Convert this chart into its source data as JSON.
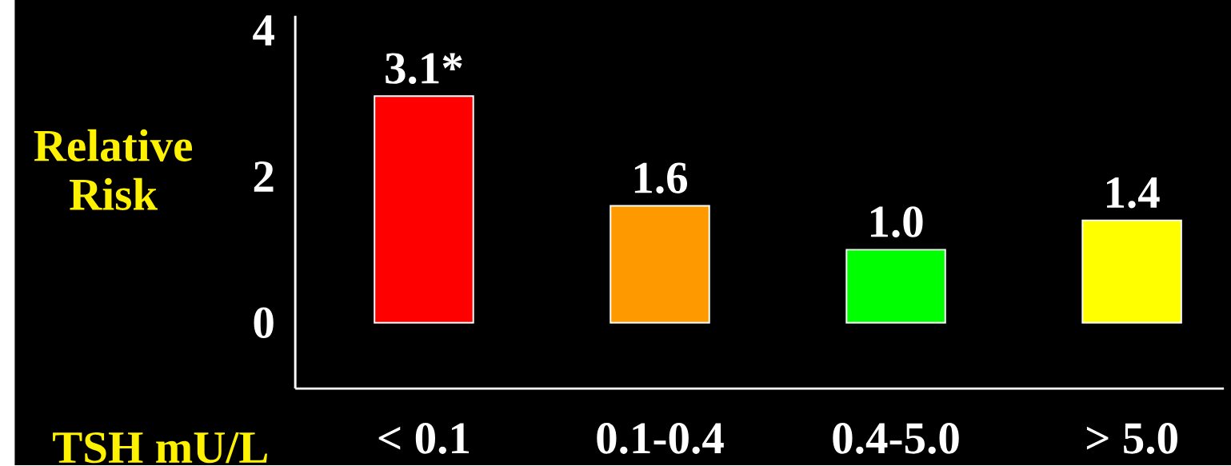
{
  "chart_data": {
    "type": "bar",
    "ylabel": "Relative Risk",
    "xlabel": "TSH mU/L",
    "categories": [
      "< 0.1",
      "0.1-0.4",
      "0.4-5.0",
      "> 5.0"
    ],
    "values": [
      3.1,
      1.6,
      1.0,
      1.4
    ],
    "colors": [
      "#ff0000",
      "#ff9900",
      "#00ff00",
      "#ffff00"
    ],
    "value_labels": [
      "3.1*",
      "1.6",
      "1.0",
      "1.4"
    ],
    "ylim": [
      -0.9,
      4.2
    ],
    "yticks": [
      0,
      2,
      4
    ]
  }
}
